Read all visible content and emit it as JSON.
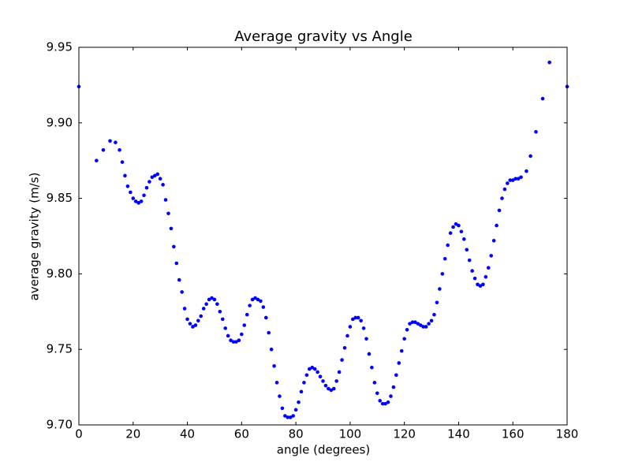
{
  "chart_data": {
    "type": "scatter",
    "title": "Average gravity vs Angle",
    "x_label": "angle (degrees)",
    "y_label": "average gravity (m/s)",
    "color": "#0000ff",
    "xlim": [
      0,
      180
    ],
    "xticks": [
      0,
      20,
      40,
      60,
      80,
      100,
      120,
      140,
      160,
      180
    ],
    "ylim": [
      9.7,
      9.95
    ],
    "yticks": [
      {
        "value": 9.7,
        "label": "9.70"
      },
      9.75,
      {
        "value": 9.8,
        "label": "9.80"
      },
      9.85,
      {
        "value": 9.9,
        "label": "9.90"
      },
      9.95
    ],
    "x": [
      0,
      6.5,
      9,
      11.5,
      13.5,
      15,
      16,
      17,
      18,
      19,
      20,
      21,
      22,
      23,
      24,
      25,
      26,
      27,
      28,
      29,
      30,
      31,
      32,
      33,
      34,
      35,
      36,
      37,
      38,
      39,
      40,
      41,
      42,
      43,
      44,
      45,
      46,
      47,
      48,
      49,
      50,
      51,
      52,
      53,
      54,
      55,
      56,
      57,
      58,
      59,
      60,
      61,
      62,
      63,
      64,
      65,
      66,
      67,
      68,
      69,
      70,
      71,
      72,
      73,
      74,
      75,
      76,
      77,
      78,
      79,
      80,
      81,
      82,
      83,
      84,
      85,
      86,
      87,
      88,
      89,
      90,
      91,
      92,
      93,
      94,
      95,
      96,
      97,
      98,
      99,
      100,
      101,
      102,
      103,
      104,
      105,
      106,
      107,
      108,
      109,
      110,
      111,
      112,
      113,
      114,
      115,
      116,
      117,
      118,
      119,
      120,
      121,
      122,
      123,
      124,
      125,
      126,
      127,
      128,
      129,
      130,
      131,
      132,
      133,
      134,
      135,
      136,
      137,
      138,
      139,
      140,
      141,
      142,
      143,
      144,
      145,
      146,
      147,
      148,
      149,
      150,
      151,
      152,
      153,
      154,
      155,
      156,
      157,
      158,
      159,
      160,
      161,
      162,
      163,
      165,
      166.5,
      168.5,
      171,
      173.5,
      180
    ],
    "values": [
      9.924,
      9.875,
      9.882,
      9.888,
      9.887,
      9.882,
      9.874,
      9.865,
      9.858,
      9.854,
      9.85,
      9.848,
      9.847,
      9.848,
      9.852,
      9.857,
      9.861,
      9.864,
      9.865,
      9.866,
      9.863,
      9.859,
      9.849,
      9.84,
      9.83,
      9.818,
      9.807,
      9.796,
      9.788,
      9.777,
      9.77,
      9.767,
      9.765,
      9.766,
      9.769,
      9.772,
      9.777,
      9.78,
      9.783,
      9.784,
      9.783,
      9.78,
      9.775,
      9.77,
      9.764,
      9.759,
      9.756,
      9.755,
      9.755,
      9.756,
      9.76,
      9.766,
      9.773,
      9.779,
      9.783,
      9.784,
      9.783,
      9.782,
      9.778,
      9.771,
      9.761,
      9.75,
      9.739,
      9.728,
      9.719,
      9.711,
      9.706,
      9.705,
      9.705,
      9.706,
      9.71,
      9.715,
      9.722,
      9.728,
      9.733,
      9.737,
      9.738,
      9.737,
      9.735,
      9.732,
      9.729,
      9.726,
      9.724,
      9.723,
      9.724,
      9.729,
      9.735,
      9.743,
      9.751,
      9.759,
      9.765,
      9.77,
      9.771,
      9.771,
      9.769,
      9.764,
      9.757,
      9.747,
      9.738,
      9.728,
      9.721,
      9.716,
      9.714,
      9.714,
      9.715,
      9.719,
      9.725,
      9.733,
      9.741,
      9.749,
      9.757,
      9.763,
      9.767,
      9.768,
      9.768,
      9.767,
      9.766,
      9.765,
      9.765,
      9.767,
      9.769,
      9.773,
      9.781,
      9.79,
      9.8,
      9.81,
      9.819,
      9.827,
      9.831,
      9.833,
      9.832,
      9.828,
      9.823,
      9.816,
      9.809,
      9.802,
      9.797,
      9.793,
      9.792,
      9.793,
      9.798,
      9.804,
      9.812,
      9.822,
      9.832,
      9.842,
      9.85,
      9.856,
      9.86,
      9.862,
      9.862,
      9.863,
      9.863,
      9.864,
      9.868,
      9.878,
      9.894,
      9.916,
      9.94,
      9.924
    ]
  }
}
